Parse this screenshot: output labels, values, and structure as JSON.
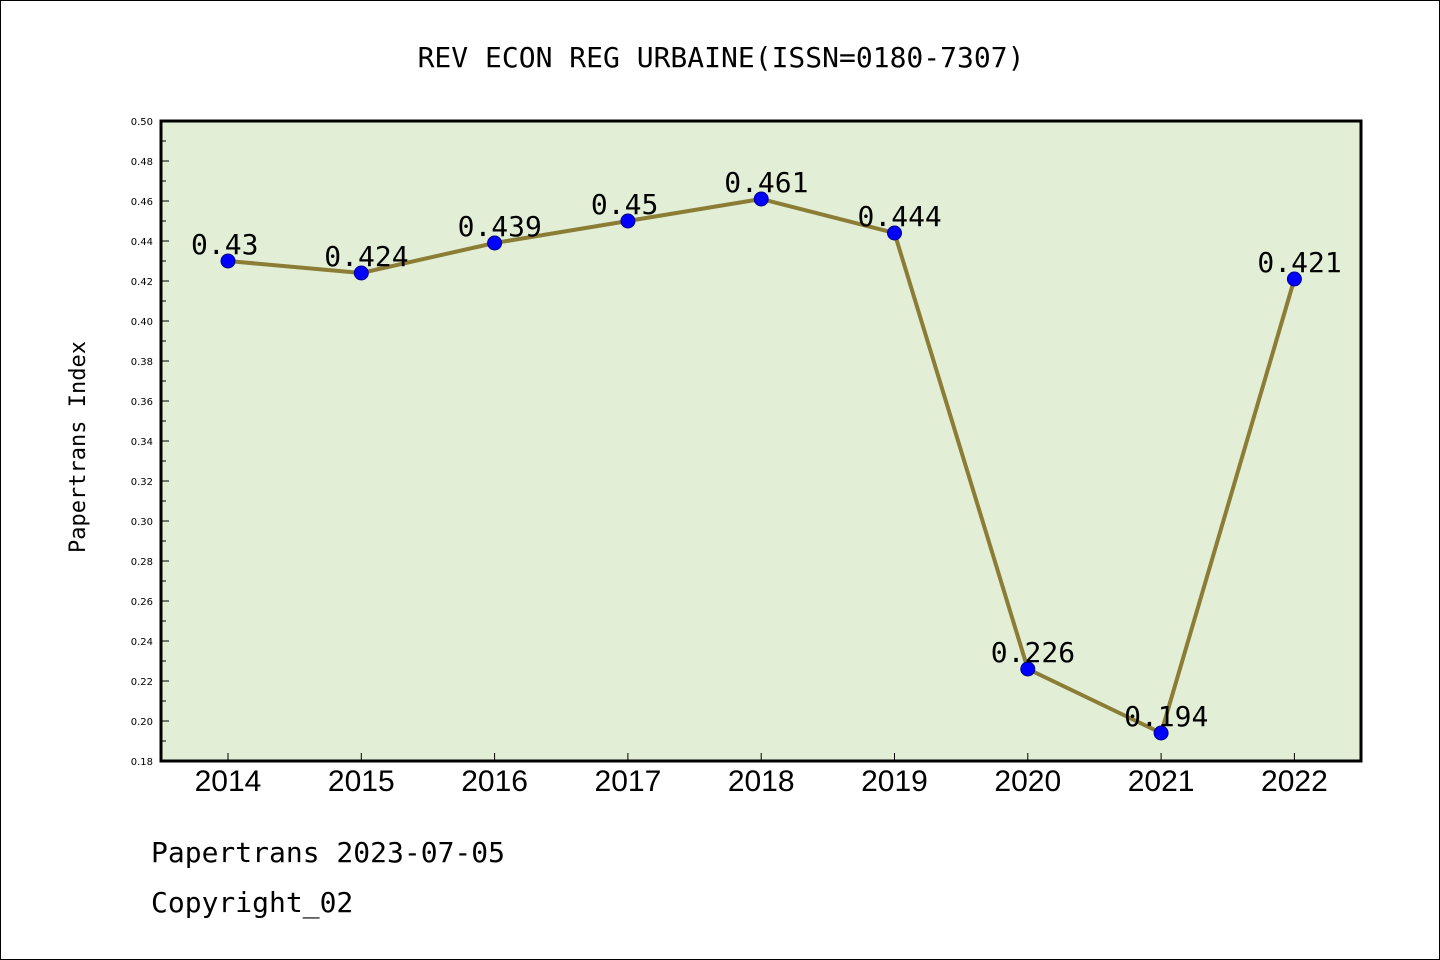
{
  "chart_data": {
    "type": "line",
    "title": "REV ECON REG URBAINE(ISSN=0180-7307)",
    "ylabel": "Papertrans Index",
    "xlabel": "",
    "categories": [
      "2014",
      "2015",
      "2016",
      "2017",
      "2018",
      "2019",
      "2020",
      "2021",
      "2022"
    ],
    "values": [
      0.43,
      0.424,
      0.439,
      0.45,
      0.461,
      0.444,
      0.226,
      0.194,
      0.421
    ],
    "data_labels": [
      "0.43",
      "0.424",
      "0.439",
      "0.45",
      "0.461",
      "0.444",
      "0.226",
      "0.194",
      "0.421"
    ],
    "ylim": [
      0.18,
      0.5
    ],
    "yticks": [
      "0.18",
      "0.20",
      "0.22",
      "0.24",
      "0.26",
      "0.28",
      "0.30",
      "0.32",
      "0.34",
      "0.36",
      "0.38",
      "0.40",
      "0.42",
      "0.44",
      "0.46",
      "0.48",
      "0.50"
    ],
    "grid": false,
    "colors": {
      "plot_background": "#e2efd6",
      "line": "#8b7d35",
      "marker": "#0000ff"
    }
  },
  "footer": {
    "line1": "Papertrans 2023-07-05",
    "line2": "Copyright_02"
  }
}
